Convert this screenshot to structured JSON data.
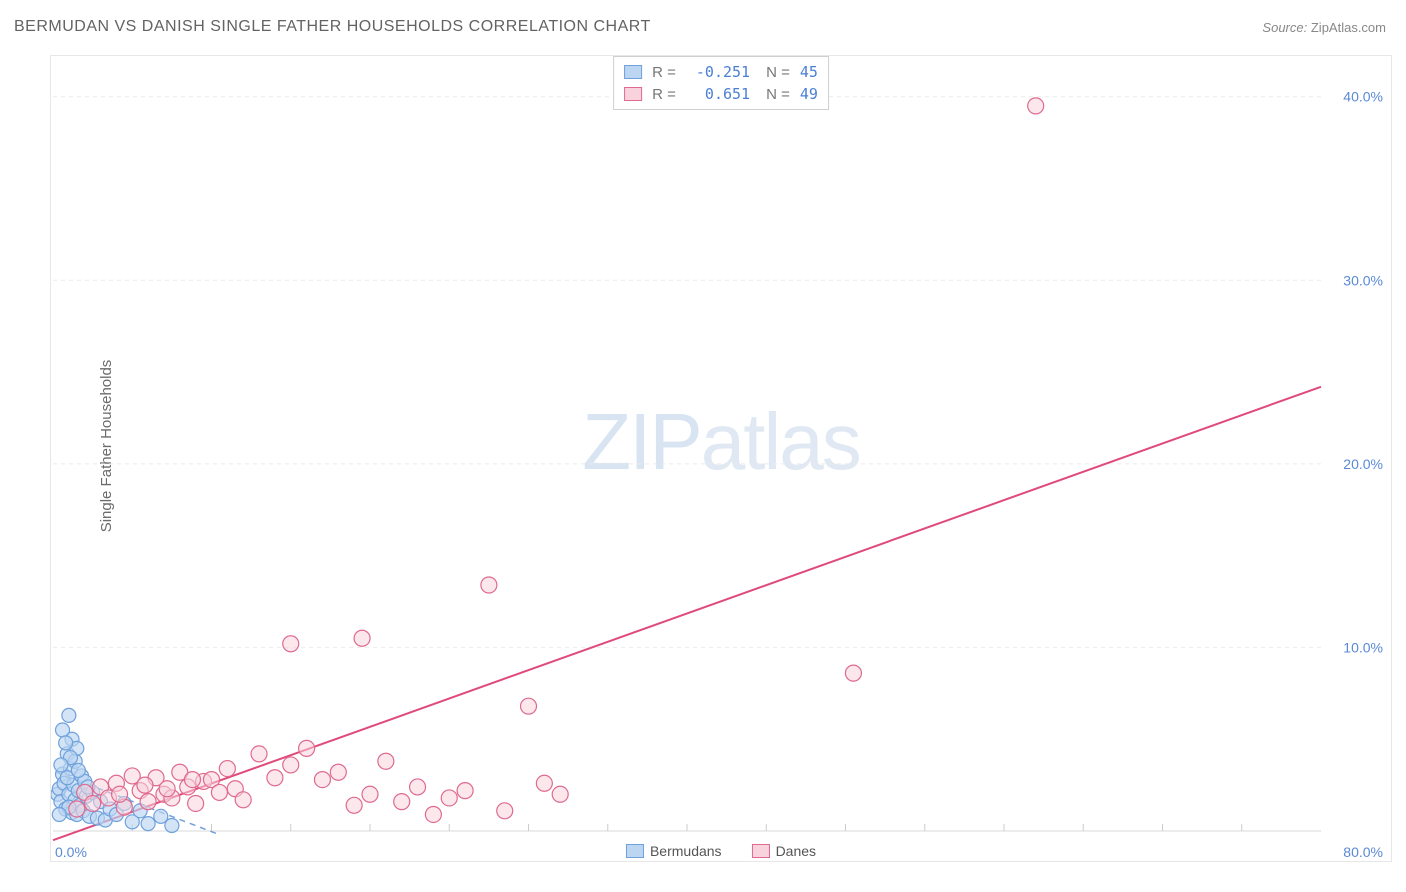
{
  "title": "BERMUDAN VS DANISH SINGLE FATHER HOUSEHOLDS CORRELATION CHART",
  "source": {
    "label": "Source:",
    "value": "ZipAtlas.com"
  },
  "ylabel": "Single Father Households",
  "watermark": {
    "bold": "ZIP",
    "light": "atlas"
  },
  "chart": {
    "type": "scatter",
    "background_color": "#ffffff",
    "border_color": "#e7e7e7",
    "grid_color": "#ebebeb",
    "grid_dash": "4,4",
    "tick_color": "#cccccc",
    "axis_label_color": "#5a8ad6",
    "axis_label_fontsize": 14,
    "xlim": [
      0,
      80
    ],
    "ylim": [
      0,
      42
    ],
    "y_ticks": [
      10,
      20,
      30,
      40
    ],
    "y_tick_labels": [
      "10.0%",
      "20.0%",
      "30.0%",
      "40.0%"
    ],
    "x_origin_label": "0.0%",
    "x_max_label": "80.0%",
    "x_minor_ticks": [
      5,
      10,
      15,
      20,
      25,
      30,
      35,
      40,
      45,
      50,
      55,
      60,
      65,
      70,
      75
    ],
    "series": [
      {
        "name": "Bermudans",
        "color_fill": "#bcd5f1",
        "color_stroke": "#6fa1dc",
        "marker_radius": 7,
        "marker_opacity": 0.65,
        "R": "-0.251",
        "N": "45",
        "points": [
          [
            0.3,
            2.0
          ],
          [
            0.4,
            2.3
          ],
          [
            0.5,
            1.6
          ],
          [
            0.6,
            3.1
          ],
          [
            0.7,
            2.6
          ],
          [
            0.8,
            1.2
          ],
          [
            0.9,
            4.2
          ],
          [
            1.0,
            6.3
          ],
          [
            1.0,
            2.0
          ],
          [
            1.1,
            3.4
          ],
          [
            1.2,
            1.0
          ],
          [
            1.2,
            5.0
          ],
          [
            1.3,
            2.5
          ],
          [
            1.4,
            1.7
          ],
          [
            1.4,
            3.8
          ],
          [
            1.5,
            0.9
          ],
          [
            1.5,
            4.5
          ],
          [
            1.6,
            2.2
          ],
          [
            1.7,
            1.4
          ],
          [
            1.8,
            3.0
          ],
          [
            1.9,
            1.1
          ],
          [
            2.0,
            2.7
          ],
          [
            2.1,
            1.9
          ],
          [
            2.3,
            0.8
          ],
          [
            2.5,
            2.1
          ],
          [
            2.8,
            0.7
          ],
          [
            3.0,
            1.6
          ],
          [
            3.3,
            0.6
          ],
          [
            3.6,
            1.2
          ],
          [
            4.0,
            0.9
          ],
          [
            4.5,
            1.5
          ],
          [
            5.0,
            0.5
          ],
          [
            5.5,
            1.1
          ],
          [
            6.0,
            0.4
          ],
          [
            6.8,
            0.8
          ],
          [
            7.5,
            0.3
          ],
          [
            0.6,
            5.5
          ],
          [
            0.8,
            4.8
          ],
          [
            1.1,
            4.0
          ],
          [
            0.5,
            3.6
          ],
          [
            0.9,
            2.9
          ],
          [
            1.6,
            3.3
          ],
          [
            2.2,
            2.4
          ],
          [
            1.0,
            1.3
          ],
          [
            0.4,
            0.9
          ]
        ],
        "trend": {
          "x1": 0.2,
          "y1": 3.2,
          "x2": 10.5,
          "y2": -0.2,
          "dash": "6,5",
          "width": 1.5,
          "color": "#6fa1dc"
        }
      },
      {
        "name": "Danes",
        "color_fill": "#f8d3dd",
        "color_stroke": "#e06a8f",
        "marker_radius": 8,
        "marker_opacity": 0.55,
        "R": "0.651",
        "N": "49",
        "points": [
          [
            1.5,
            1.2
          ],
          [
            2.0,
            2.1
          ],
          [
            2.5,
            1.5
          ],
          [
            3.0,
            2.4
          ],
          [
            3.5,
            1.8
          ],
          [
            4.0,
            2.6
          ],
          [
            4.5,
            1.3
          ],
          [
            5.0,
            3.0
          ],
          [
            5.5,
            2.2
          ],
          [
            6.0,
            1.6
          ],
          [
            6.5,
            2.9
          ],
          [
            7.0,
            2.0
          ],
          [
            7.5,
            1.8
          ],
          [
            8.0,
            3.2
          ],
          [
            8.5,
            2.4
          ],
          [
            9.0,
            1.5
          ],
          [
            9.5,
            2.7
          ],
          [
            10.0,
            2.8
          ],
          [
            10.5,
            2.1
          ],
          [
            11.0,
            3.4
          ],
          [
            11.5,
            2.3
          ],
          [
            12.0,
            1.7
          ],
          [
            13.0,
            4.2
          ],
          [
            14.0,
            2.9
          ],
          [
            15.0,
            3.6
          ],
          [
            15.0,
            10.2
          ],
          [
            16.0,
            4.5
          ],
          [
            17.0,
            2.8
          ],
          [
            18.0,
            3.2
          ],
          [
            19.0,
            1.4
          ],
          [
            19.5,
            10.5
          ],
          [
            20.0,
            2.0
          ],
          [
            21.0,
            3.8
          ],
          [
            22.0,
            1.6
          ],
          [
            23.0,
            2.4
          ],
          [
            24.0,
            0.9
          ],
          [
            25.0,
            1.8
          ],
          [
            26.0,
            2.2
          ],
          [
            27.5,
            13.4
          ],
          [
            28.5,
            1.1
          ],
          [
            30.0,
            6.8
          ],
          [
            31.0,
            2.6
          ],
          [
            32.0,
            2.0
          ],
          [
            50.5,
            8.6
          ],
          [
            62.0,
            39.5
          ],
          [
            4.2,
            2.0
          ],
          [
            5.8,
            2.5
          ],
          [
            7.2,
            2.3
          ],
          [
            8.8,
            2.8
          ]
        ],
        "trend": {
          "x1": 0,
          "y1": -0.5,
          "x2": 80,
          "y2": 24.2,
          "dash": "none",
          "width": 2,
          "color": "#e04a7a"
        }
      }
    ]
  },
  "legend_bottom": [
    {
      "label": "Bermudans",
      "fill": "#bcd5f1",
      "stroke": "#6fa1dc"
    },
    {
      "label": "Danes",
      "fill": "#f8d3dd",
      "stroke": "#e06a8f"
    }
  ]
}
